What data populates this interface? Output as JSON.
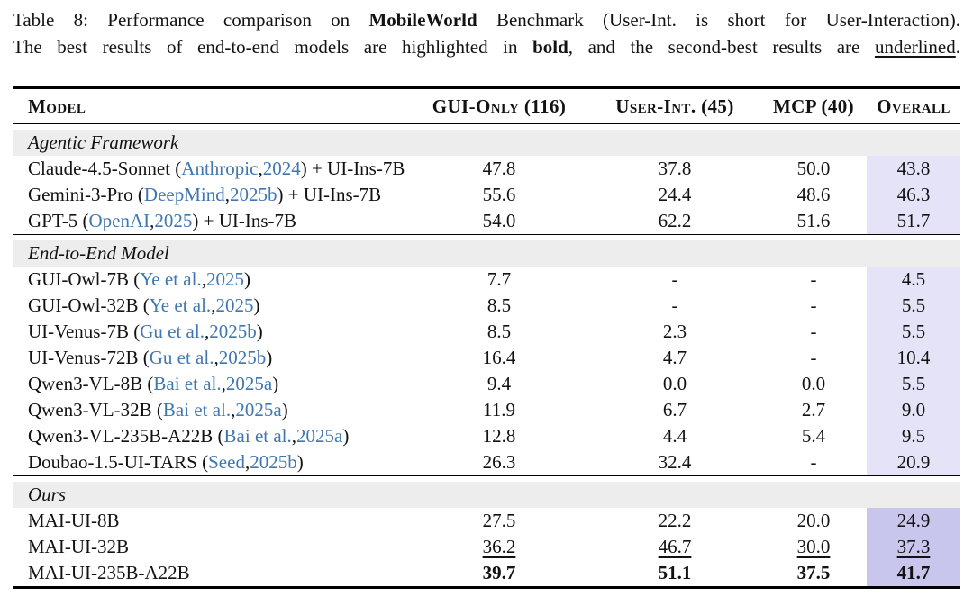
{
  "caption": {
    "line1": [
      {
        "text": "Table 8: Performance comparison on "
      },
      {
        "text": "MobileWorld"
      },
      {
        "text": " Benchmark (User-Int. is short for User-Interaction)."
      }
    ],
    "line2": [
      {
        "text": "The best results of end-to-end models are highlighted in "
      },
      {
        "text": "bold"
      },
      {
        "text": ", and the second-best results are "
      },
      {
        "text": "underlined"
      },
      {
        "text": "."
      }
    ]
  },
  "table": {
    "columns": [
      "Model",
      "GUI-Only (116)",
      "User-Int. (45)",
      "MCP (40)",
      "Overall"
    ],
    "sections": [
      {
        "label": "Agentic Framework",
        "highlight": "light",
        "rows": [
          {
            "pre": "Claude-4.5-Sonnet (",
            "cite": "Anthropic",
            "sep": ", ",
            "year": "2024",
            "post": ") + UI-Ins-7B",
            "values": [
              "47.8",
              "37.8",
              "50.0",
              "43.8"
            ],
            "emphasis": "none"
          },
          {
            "pre": "Gemini-3-Pro (",
            "cite": "DeepMind",
            "sep": ", ",
            "year": "2025b",
            "post": ") + UI-Ins-7B",
            "values": [
              "55.6",
              "24.4",
              "48.6",
              "46.3"
            ],
            "emphasis": "none"
          },
          {
            "pre": "GPT-5 (",
            "cite": "OpenAI",
            "sep": ", ",
            "year": "2025",
            "post": ") + UI-Ins-7B",
            "values": [
              "54.0",
              "62.2",
              "51.6",
              "51.7"
            ],
            "emphasis": "none"
          }
        ]
      },
      {
        "label": "End-to-End Model",
        "highlight": "light",
        "rows": [
          {
            "pre": "GUI-Owl-7B (",
            "cite": "Ye et al.",
            "sep": ", ",
            "year": "2025",
            "post": ")",
            "values": [
              "7.7",
              "-",
              "-",
              "4.5"
            ],
            "emphasis": "none"
          },
          {
            "pre": "GUI-Owl-32B (",
            "cite": "Ye et al.",
            "sep": ", ",
            "year": "2025",
            "post": ")",
            "values": [
              "8.5",
              "-",
              "-",
              "5.5"
            ],
            "emphasis": "none"
          },
          {
            "pre": "UI-Venus-7B (",
            "cite": "Gu et al.",
            "sep": ", ",
            "year": "2025b",
            "post": ")",
            "values": [
              "8.5",
              "2.3",
              "-",
              "5.5"
            ],
            "emphasis": "none"
          },
          {
            "pre": "UI-Venus-72B (",
            "cite": "Gu et al.",
            "sep": ", ",
            "year": "2025b",
            "post": ")",
            "values": [
              "16.4",
              "4.7",
              "-",
              "10.4"
            ],
            "emphasis": "none"
          },
          {
            "pre": "Qwen3-VL-8B (",
            "cite": "Bai et al.",
            "sep": ", ",
            "year": "2025a",
            "post": ")",
            "values": [
              "9.4",
              "0.0",
              "0.0",
              "5.5"
            ],
            "emphasis": "none"
          },
          {
            "pre": "Qwen3-VL-32B (",
            "cite": "Bai et al.",
            "sep": ", ",
            "year": "2025a",
            "post": ")",
            "values": [
              "11.9",
              "6.7",
              "2.7",
              "9.0"
            ],
            "emphasis": "none"
          },
          {
            "pre": "Qwen3-VL-235B-A22B (",
            "cite": "Bai et al.",
            "sep": ", ",
            "year": "2025a",
            "post": ")",
            "values": [
              "12.8",
              "4.4",
              "5.4",
              "9.5"
            ],
            "emphasis": "none"
          },
          {
            "pre": "Doubao-1.5-UI-TARS (",
            "cite": "Seed",
            "sep": ", ",
            "year": "2025b",
            "post": ")",
            "values": [
              "26.3",
              "32.4",
              "-",
              "20.9"
            ],
            "emphasis": "none"
          }
        ]
      },
      {
        "label": "Ours",
        "highlight": "strong",
        "rows": [
          {
            "pre": "MAI-UI-8B",
            "cite": "",
            "sep": "",
            "year": "",
            "post": "",
            "values": [
              "27.5",
              "22.2",
              "20.0",
              "24.9"
            ],
            "emphasis": "none"
          },
          {
            "pre": "MAI-UI-32B",
            "cite": "",
            "sep": "",
            "year": "",
            "post": "",
            "values": [
              "36.2",
              "46.7",
              "30.0",
              "37.3"
            ],
            "emphasis": "underline"
          },
          {
            "pre": "MAI-UI-235B-A22B",
            "cite": "",
            "sep": "",
            "year": "",
            "post": "",
            "values": [
              "39.7",
              "51.1",
              "37.5",
              "41.7"
            ],
            "emphasis": "bold"
          }
        ]
      }
    ]
  },
  "colors": {
    "section_band": "#ededed",
    "overall_highlight": "#e5e3f7",
    "overall_highlight_ours": "#c9c6ed",
    "citation_blue": "#4077b0"
  }
}
